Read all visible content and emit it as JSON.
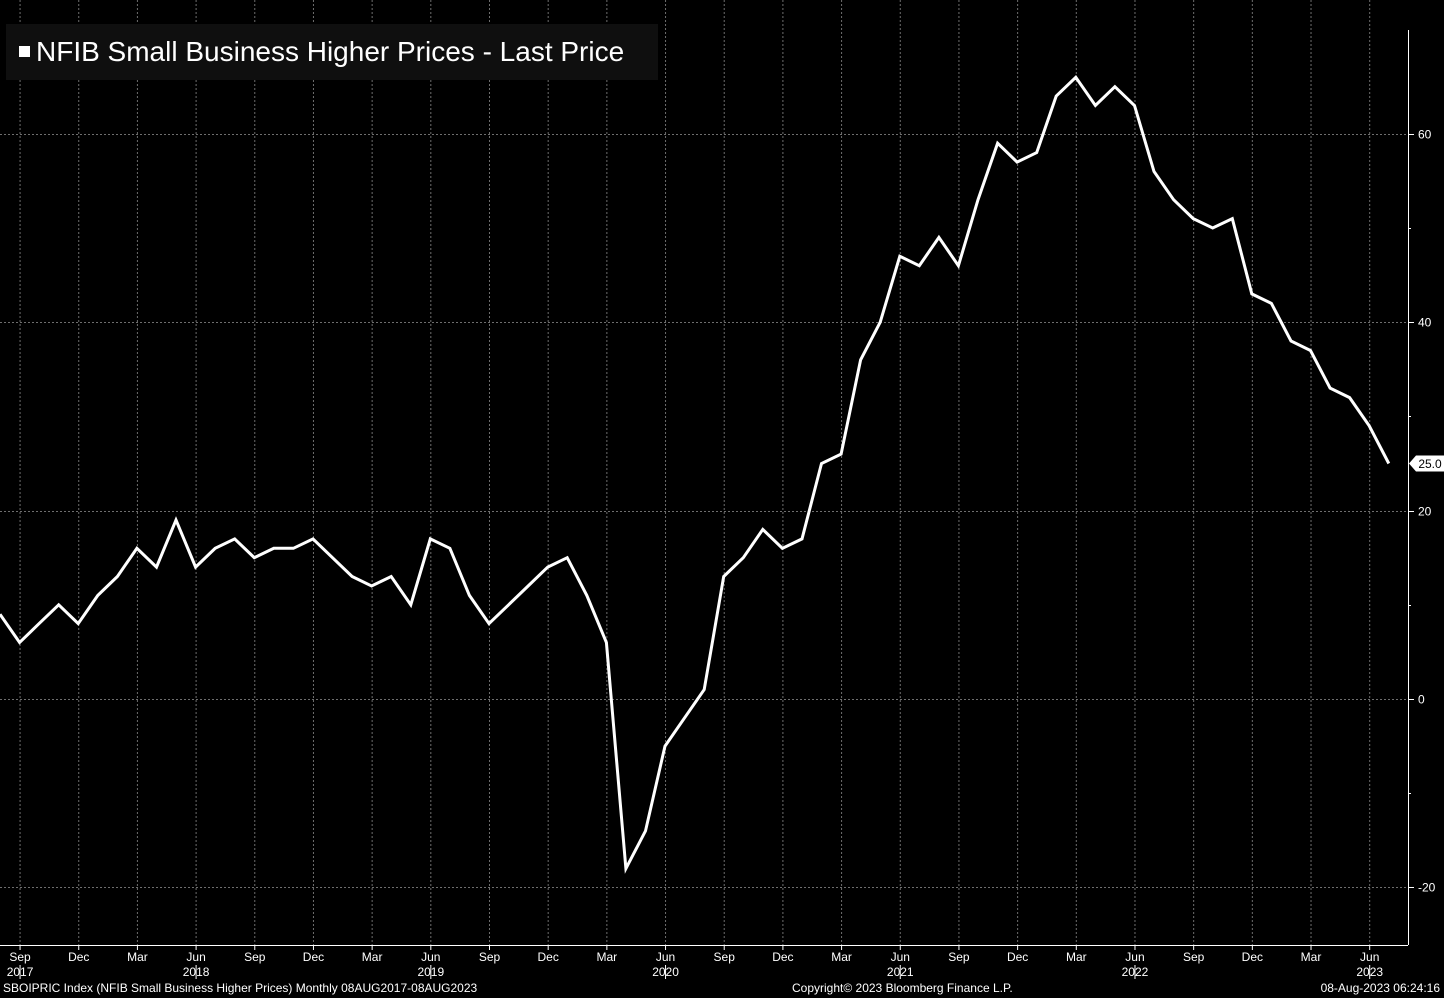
{
  "legend": {
    "label": "NFIB Small Business Higher Prices - Last Price",
    "color": "#ffffff"
  },
  "footer": {
    "left": "SBOIPRIC Index (NFIB Small Business Higher Prices)  Monthly 08AUG2017-08AUG2023",
    "center": "Copyright© 2023 Bloomberg Finance L.P.",
    "right": "08-Aug-2023 06:24:16"
  },
  "colors": {
    "background": "#000000",
    "line": "#ffffff",
    "grid": "#6e6e6e"
  },
  "chart_data": {
    "type": "line",
    "title": "",
    "series": [
      {
        "name": "NFIB Small Business Higher Prices - Last Price",
        "values": [
          9,
          6,
          8,
          10,
          8,
          11,
          13,
          16,
          14,
          19,
          14,
          16,
          17,
          15,
          16,
          16,
          17,
          15,
          13,
          12,
          13,
          10,
          17,
          16,
          11,
          8,
          10,
          12,
          14,
          15,
          11,
          6,
          -18,
          -14,
          -5,
          -2,
          1,
          13,
          15,
          18,
          16,
          17,
          25,
          26,
          36,
          40,
          47,
          46,
          49,
          46,
          53,
          59,
          57,
          58,
          64,
          66,
          63,
          65,
          63,
          56,
          53,
          51,
          50,
          51,
          43,
          42,
          38,
          37,
          33,
          32,
          29,
          25
        ]
      }
    ],
    "x_start": "2017-08",
    "x_end": "2023-07",
    "x_ticks": [
      {
        "month": "Sep",
        "year": "2017",
        "date": "2017-09"
      },
      {
        "month": "Dec",
        "year": "",
        "date": "2017-12"
      },
      {
        "month": "Mar",
        "year": "",
        "date": "2018-03"
      },
      {
        "month": "Jun",
        "year": "2018",
        "date": "2018-06"
      },
      {
        "month": "Sep",
        "year": "",
        "date": "2018-09"
      },
      {
        "month": "Dec",
        "year": "",
        "date": "2018-12"
      },
      {
        "month": "Mar",
        "year": "",
        "date": "2019-03"
      },
      {
        "month": "Jun",
        "year": "2019",
        "date": "2019-06"
      },
      {
        "month": "Sep",
        "year": "",
        "date": "2019-09"
      },
      {
        "month": "Dec",
        "year": "",
        "date": "2019-12"
      },
      {
        "month": "Mar",
        "year": "",
        "date": "2020-03"
      },
      {
        "month": "Jun",
        "year": "2020",
        "date": "2020-06"
      },
      {
        "month": "Sep",
        "year": "",
        "date": "2020-09"
      },
      {
        "month": "Dec",
        "year": "",
        "date": "2020-12"
      },
      {
        "month": "Mar",
        "year": "",
        "date": "2021-03"
      },
      {
        "month": "Jun",
        "year": "2021",
        "date": "2021-06"
      },
      {
        "month": "Sep",
        "year": "",
        "date": "2021-09"
      },
      {
        "month": "Dec",
        "year": "",
        "date": "2021-12"
      },
      {
        "month": "Mar",
        "year": "",
        "date": "2022-03"
      },
      {
        "month": "Jun",
        "year": "2022",
        "date": "2022-06"
      },
      {
        "month": "Sep",
        "year": "",
        "date": "2022-09"
      },
      {
        "month": "Dec",
        "year": "",
        "date": "2022-12"
      },
      {
        "month": "Mar",
        "year": "",
        "date": "2023-03"
      },
      {
        "month": "Jun",
        "year": "2023",
        "date": "2023-06"
      }
    ],
    "y_ticks": [
      -20,
      0,
      20,
      40,
      60
    ],
    "ylim": [
      -26,
      70
    ],
    "last_value_label": "25.0",
    "xlabel": "",
    "ylabel": "",
    "grid": true,
    "legend_position": "top-left"
  }
}
